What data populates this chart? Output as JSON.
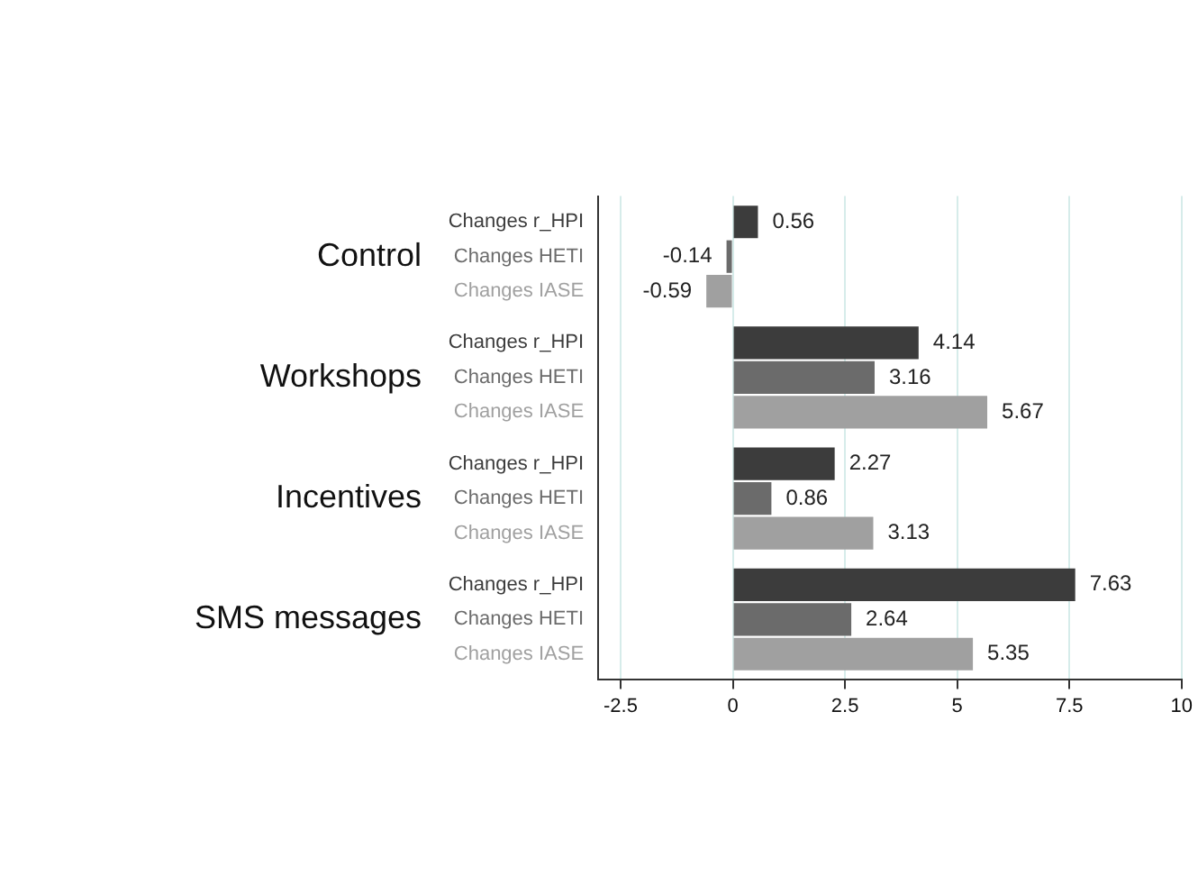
{
  "chart_data": {
    "type": "bar",
    "orientation": "horizontal",
    "categories": [
      "Control",
      "Workshops",
      "Incentives",
      "SMS messages"
    ],
    "series": [
      {
        "name": "Changes r_HPI",
        "color": "#3c3c3c",
        "values": [
          0.56,
          4.14,
          2.27,
          7.63
        ]
      },
      {
        "name": "Changes HETI",
        "color": "#6b6b6b",
        "values": [
          -0.14,
          3.16,
          0.86,
          2.64
        ]
      },
      {
        "name": "Changes IASE",
        "color": "#a0a0a0",
        "values": [
          -0.59,
          5.67,
          3.13,
          5.35
        ]
      }
    ],
    "xlim": [
      -3,
      10
    ],
    "xticks": [
      -2.5,
      0,
      2.5,
      5,
      7.5,
      10
    ],
    "grid": "x",
    "data_labels": true,
    "legend": false
  }
}
